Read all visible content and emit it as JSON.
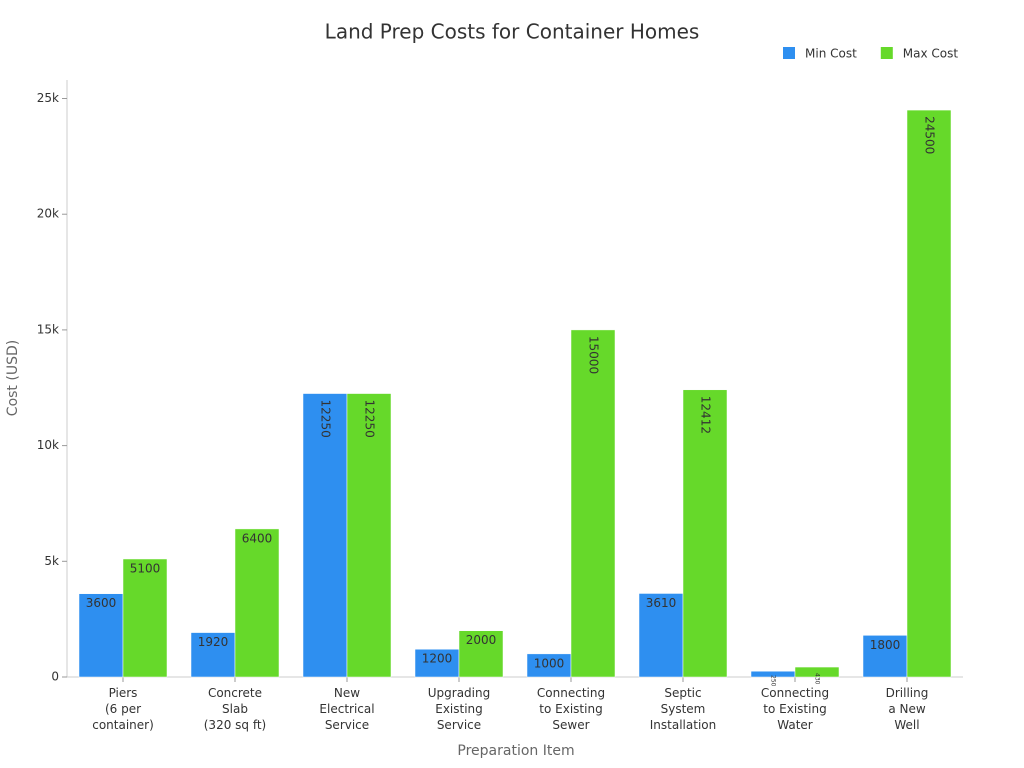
{
  "chart_data": {
    "type": "bar",
    "title": "Land Prep Costs for Container Homes",
    "x_label": "Preparation Item",
    "y_label": "Cost (USD)",
    "categories": [
      "Piers\n(6 per\ncontainer)",
      "Concrete\nSlab\n(320 sq ft)",
      "New\nElectrical\nService",
      "Upgrading\nExisting\nService",
      "Connecting\nto Existing\nSewer",
      "Septic\nSystem\nInstallation",
      "Connecting\nto Existing\nWater",
      "Drilling\na New\nWell"
    ],
    "series": [
      {
        "name": "Min Cost",
        "color": "#2e8ff0",
        "values": [
          3600,
          1920,
          12250,
          1200,
          1000,
          3610,
          250,
          1800
        ]
      },
      {
        "name": "Max Cost",
        "color": "#66d92a",
        "values": [
          5100,
          6400,
          12250,
          2000,
          15000,
          12412,
          430,
          24500
        ]
      }
    ],
    "ylim": [
      0,
      25800
    ],
    "yticks": [
      0,
      {
        "value": 5000,
        "label": "5k"
      },
      {
        "value": 10000,
        "label": "10k"
      },
      {
        "value": 15000,
        "label": "15k"
      },
      {
        "value": 20000,
        "label": "20k"
      },
      {
        "value": 25000,
        "label": "25k"
      }
    ],
    "legend": "top-right",
    "grid": false
  }
}
